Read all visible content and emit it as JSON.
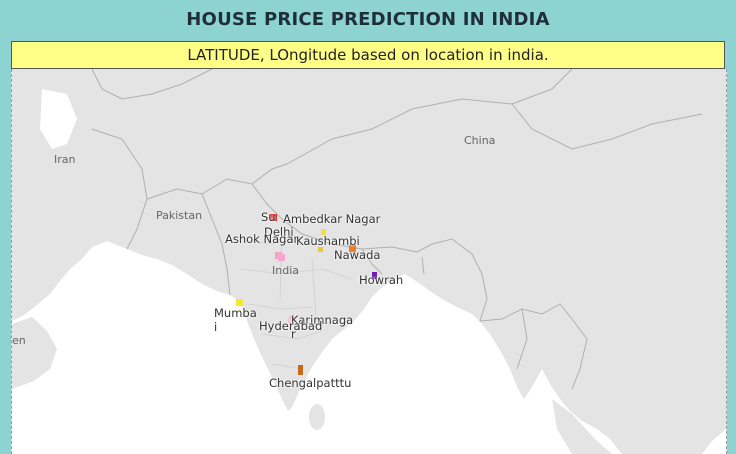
{
  "title": "HOUSE PRICE PREDICTION IN INDIA",
  "subtitle": "LATITUDE, LOngitude based on location in india.",
  "map": {
    "countries": {
      "iran": "Iran",
      "pakistan": "Pakistan",
      "india": "India",
      "china": "China",
      "edge": "en"
    },
    "cities": [
      {
        "name": "Surat",
        "label": "Su",
        "color": "#e8231d"
      },
      {
        "name": "Delhi",
        "label": "Delhi",
        "color": "#f4a6b8"
      },
      {
        "name": "Ambedkar Nagar",
        "label": "Ambedkar Nagar",
        "color": "#f7e03c"
      },
      {
        "name": "Ashok Nagar",
        "label": "Ashok Nagar",
        "color": "#f4a6d0"
      },
      {
        "name": "Kaushambi",
        "label": "Kaushambi",
        "color": "#e8c93b"
      },
      {
        "name": "Nawada",
        "label": "Nawada",
        "color": "#f07c22"
      },
      {
        "name": "Howrah",
        "label": "Howrah",
        "color": "#6f1db8"
      },
      {
        "name": "Mumbai",
        "label": "Mumba\ni",
        "color": "#f2ea2e"
      },
      {
        "name": "Karimnagar",
        "label": "Karimnaga\nr",
        "color": "#f7b6cc"
      },
      {
        "name": "Hyderabad",
        "label": "Hyderabad",
        "color": "#f3c9d8"
      },
      {
        "name": "Chengalpattu",
        "label": "Chengalpatttu",
        "color": "#c46a1c"
      }
    ]
  }
}
